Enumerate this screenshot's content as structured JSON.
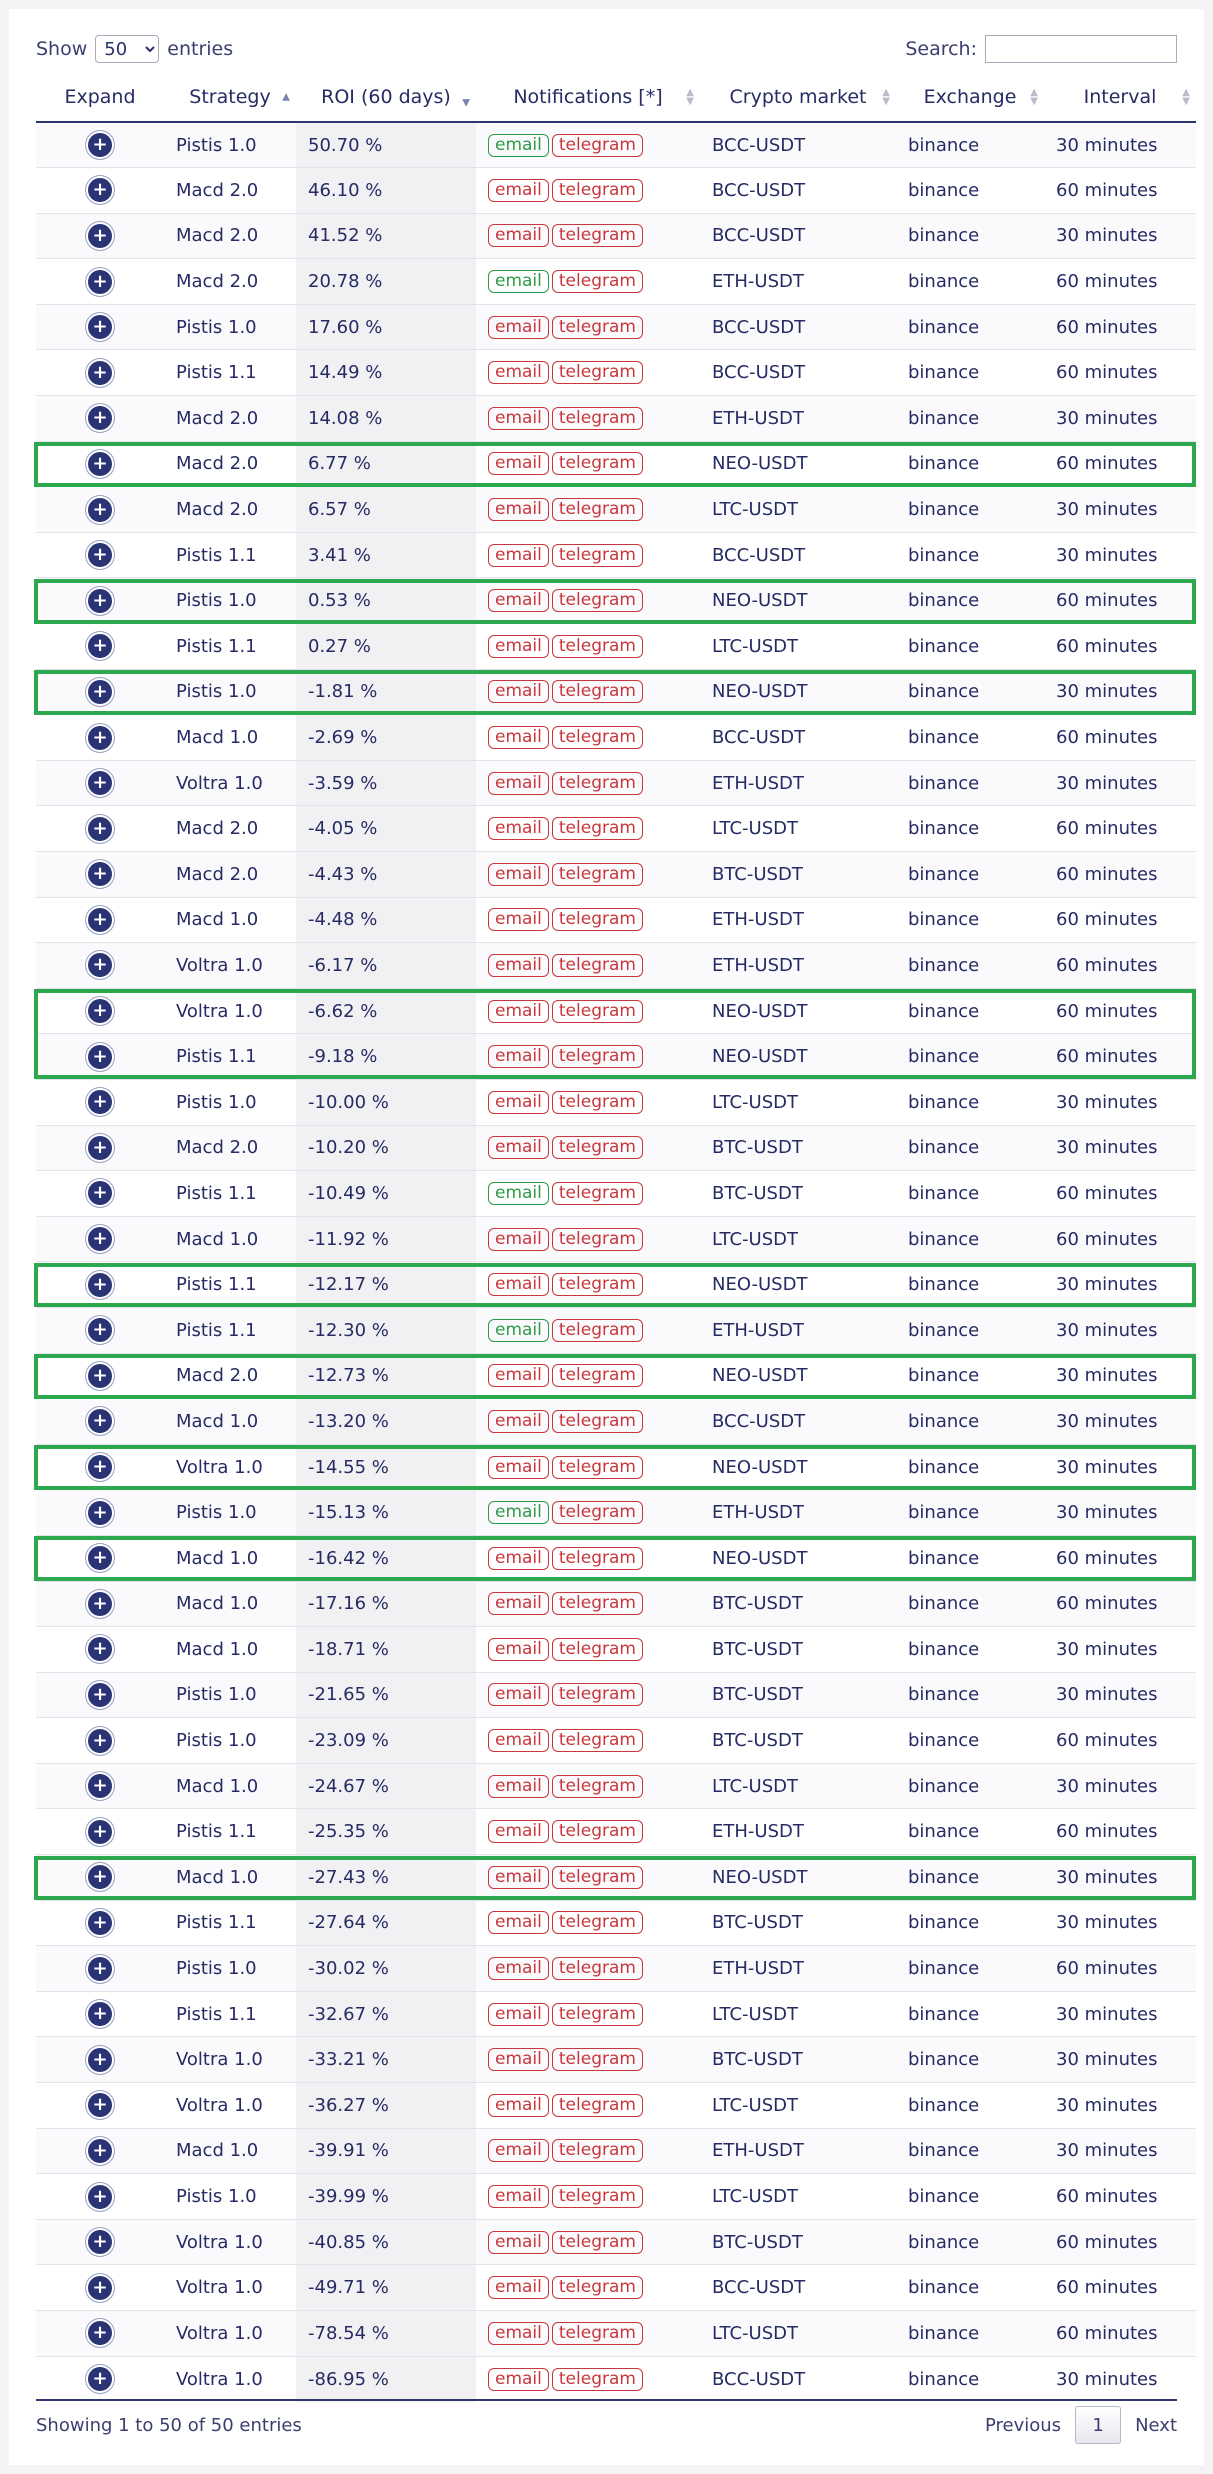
{
  "controls": {
    "show_label": "Show",
    "entries_label": "entries",
    "page_size": "50",
    "search_label": "Search:",
    "search_value": ""
  },
  "columns": [
    "Expand",
    "Strategy",
    "ROI (60 days)",
    "Notifications [*]",
    "Crypto market",
    "Exchange",
    "Interval"
  ],
  "sort": {
    "strategy": "ascending",
    "roi": "descending"
  },
  "rows": [
    {
      "strategy": "Pistis 1.0",
      "roi": "50.70 %",
      "email_on": true,
      "telegram_on": false,
      "market": "BCC-USDT",
      "exchange": "binance",
      "interval": "30 minutes",
      "highlight": false
    },
    {
      "strategy": "Macd 2.0",
      "roi": "46.10 %",
      "email_on": false,
      "telegram_on": false,
      "market": "BCC-USDT",
      "exchange": "binance",
      "interval": "60 minutes",
      "highlight": false
    },
    {
      "strategy": "Macd 2.0",
      "roi": "41.52 %",
      "email_on": false,
      "telegram_on": false,
      "market": "BCC-USDT",
      "exchange": "binance",
      "interval": "30 minutes",
      "highlight": false
    },
    {
      "strategy": "Macd 2.0",
      "roi": "20.78 %",
      "email_on": true,
      "telegram_on": false,
      "market": "ETH-USDT",
      "exchange": "binance",
      "interval": "60 minutes",
      "highlight": false
    },
    {
      "strategy": "Pistis 1.0",
      "roi": "17.60 %",
      "email_on": false,
      "telegram_on": false,
      "market": "BCC-USDT",
      "exchange": "binance",
      "interval": "60 minutes",
      "highlight": false
    },
    {
      "strategy": "Pistis 1.1",
      "roi": "14.49 %",
      "email_on": false,
      "telegram_on": false,
      "market": "BCC-USDT",
      "exchange": "binance",
      "interval": "60 minutes",
      "highlight": false
    },
    {
      "strategy": "Macd 2.0",
      "roi": "14.08 %",
      "email_on": false,
      "telegram_on": false,
      "market": "ETH-USDT",
      "exchange": "binance",
      "interval": "30 minutes",
      "highlight": false
    },
    {
      "strategy": "Macd 2.0",
      "roi": "6.77 %",
      "email_on": false,
      "telegram_on": false,
      "market": "NEO-USDT",
      "exchange": "binance",
      "interval": "60 minutes",
      "highlight": true
    },
    {
      "strategy": "Macd 2.0",
      "roi": "6.57 %",
      "email_on": false,
      "telegram_on": false,
      "market": "LTC-USDT",
      "exchange": "binance",
      "interval": "30 minutes",
      "highlight": false
    },
    {
      "strategy": "Pistis 1.1",
      "roi": "3.41 %",
      "email_on": false,
      "telegram_on": false,
      "market": "BCC-USDT",
      "exchange": "binance",
      "interval": "30 minutes",
      "highlight": false
    },
    {
      "strategy": "Pistis 1.0",
      "roi": "0.53 %",
      "email_on": false,
      "telegram_on": false,
      "market": "NEO-USDT",
      "exchange": "binance",
      "interval": "60 minutes",
      "highlight": true
    },
    {
      "strategy": "Pistis 1.1",
      "roi": "0.27 %",
      "email_on": false,
      "telegram_on": false,
      "market": "LTC-USDT",
      "exchange": "binance",
      "interval": "60 minutes",
      "highlight": false
    },
    {
      "strategy": "Pistis 1.0",
      "roi": "-1.81 %",
      "email_on": false,
      "telegram_on": false,
      "market": "NEO-USDT",
      "exchange": "binance",
      "interval": "30 minutes",
      "highlight": true
    },
    {
      "strategy": "Macd 1.0",
      "roi": "-2.69 %",
      "email_on": false,
      "telegram_on": false,
      "market": "BCC-USDT",
      "exchange": "binance",
      "interval": "60 minutes",
      "highlight": false
    },
    {
      "strategy": "Voltra 1.0",
      "roi": "-3.59 %",
      "email_on": false,
      "telegram_on": false,
      "market": "ETH-USDT",
      "exchange": "binance",
      "interval": "30 minutes",
      "highlight": false
    },
    {
      "strategy": "Macd 2.0",
      "roi": "-4.05 %",
      "email_on": false,
      "telegram_on": false,
      "market": "LTC-USDT",
      "exchange": "binance",
      "interval": "60 minutes",
      "highlight": false
    },
    {
      "strategy": "Macd 2.0",
      "roi": "-4.43 %",
      "email_on": false,
      "telegram_on": false,
      "market": "BTC-USDT",
      "exchange": "binance",
      "interval": "60 minutes",
      "highlight": false
    },
    {
      "strategy": "Macd 1.0",
      "roi": "-4.48 %",
      "email_on": false,
      "telegram_on": false,
      "market": "ETH-USDT",
      "exchange": "binance",
      "interval": "60 minutes",
      "highlight": false
    },
    {
      "strategy": "Voltra 1.0",
      "roi": "-6.17 %",
      "email_on": false,
      "telegram_on": false,
      "market": "ETH-USDT",
      "exchange": "binance",
      "interval": "60 minutes",
      "highlight": false
    },
    {
      "strategy": "Voltra 1.0",
      "roi": "-6.62 %",
      "email_on": false,
      "telegram_on": false,
      "market": "NEO-USDT",
      "exchange": "binance",
      "interval": "60 minutes",
      "highlight": true
    },
    {
      "strategy": "Pistis 1.1",
      "roi": "-9.18 %",
      "email_on": false,
      "telegram_on": false,
      "market": "NEO-USDT",
      "exchange": "binance",
      "interval": "60 minutes",
      "highlight": true
    },
    {
      "strategy": "Pistis 1.0",
      "roi": "-10.00 %",
      "email_on": false,
      "telegram_on": false,
      "market": "LTC-USDT",
      "exchange": "binance",
      "interval": "30 minutes",
      "highlight": false
    },
    {
      "strategy": "Macd 2.0",
      "roi": "-10.20 %",
      "email_on": false,
      "telegram_on": false,
      "market": "BTC-USDT",
      "exchange": "binance",
      "interval": "30 minutes",
      "highlight": false
    },
    {
      "strategy": "Pistis 1.1",
      "roi": "-10.49 %",
      "email_on": true,
      "telegram_on": false,
      "market": "BTC-USDT",
      "exchange": "binance",
      "interval": "60 minutes",
      "highlight": false
    },
    {
      "strategy": "Macd 1.0",
      "roi": "-11.92 %",
      "email_on": false,
      "telegram_on": false,
      "market": "LTC-USDT",
      "exchange": "binance",
      "interval": "60 minutes",
      "highlight": false
    },
    {
      "strategy": "Pistis 1.1",
      "roi": "-12.17 %",
      "email_on": false,
      "telegram_on": false,
      "market": "NEO-USDT",
      "exchange": "binance",
      "interval": "30 minutes",
      "highlight": true
    },
    {
      "strategy": "Pistis 1.1",
      "roi": "-12.30 %",
      "email_on": true,
      "telegram_on": false,
      "market": "ETH-USDT",
      "exchange": "binance",
      "interval": "30 minutes",
      "highlight": false
    },
    {
      "strategy": "Macd 2.0",
      "roi": "-12.73 %",
      "email_on": false,
      "telegram_on": false,
      "market": "NEO-USDT",
      "exchange": "binance",
      "interval": "30 minutes",
      "highlight": true
    },
    {
      "strategy": "Macd 1.0",
      "roi": "-13.20 %",
      "email_on": false,
      "telegram_on": false,
      "market": "BCC-USDT",
      "exchange": "binance",
      "interval": "30 minutes",
      "highlight": false
    },
    {
      "strategy": "Voltra 1.0",
      "roi": "-14.55 %",
      "email_on": false,
      "telegram_on": false,
      "market": "NEO-USDT",
      "exchange": "binance",
      "interval": "30 minutes",
      "highlight": true
    },
    {
      "strategy": "Pistis 1.0",
      "roi": "-15.13 %",
      "email_on": true,
      "telegram_on": false,
      "market": "ETH-USDT",
      "exchange": "binance",
      "interval": "30 minutes",
      "highlight": false
    },
    {
      "strategy": "Macd 1.0",
      "roi": "-16.42 %",
      "email_on": false,
      "telegram_on": false,
      "market": "NEO-USDT",
      "exchange": "binance",
      "interval": "60 minutes",
      "highlight": true
    },
    {
      "strategy": "Macd 1.0",
      "roi": "-17.16 %",
      "email_on": false,
      "telegram_on": false,
      "market": "BTC-USDT",
      "exchange": "binance",
      "interval": "60 minutes",
      "highlight": false
    },
    {
      "strategy": "Macd 1.0",
      "roi": "-18.71 %",
      "email_on": false,
      "telegram_on": false,
      "market": "BTC-USDT",
      "exchange": "binance",
      "interval": "30 minutes",
      "highlight": false
    },
    {
      "strategy": "Pistis 1.0",
      "roi": "-21.65 %",
      "email_on": false,
      "telegram_on": false,
      "market": "BTC-USDT",
      "exchange": "binance",
      "interval": "30 minutes",
      "highlight": false
    },
    {
      "strategy": "Pistis 1.0",
      "roi": "-23.09 %",
      "email_on": false,
      "telegram_on": false,
      "market": "BTC-USDT",
      "exchange": "binance",
      "interval": "60 minutes",
      "highlight": false
    },
    {
      "strategy": "Macd 1.0",
      "roi": "-24.67 %",
      "email_on": false,
      "telegram_on": false,
      "market": "LTC-USDT",
      "exchange": "binance",
      "interval": "30 minutes",
      "highlight": false
    },
    {
      "strategy": "Pistis 1.1",
      "roi": "-25.35 %",
      "email_on": false,
      "telegram_on": false,
      "market": "ETH-USDT",
      "exchange": "binance",
      "interval": "60 minutes",
      "highlight": false
    },
    {
      "strategy": "Macd 1.0",
      "roi": "-27.43 %",
      "email_on": false,
      "telegram_on": false,
      "market": "NEO-USDT",
      "exchange": "binance",
      "interval": "30 minutes",
      "highlight": true
    },
    {
      "strategy": "Pistis 1.1",
      "roi": "-27.64 %",
      "email_on": false,
      "telegram_on": false,
      "market": "BTC-USDT",
      "exchange": "binance",
      "interval": "30 minutes",
      "highlight": false
    },
    {
      "strategy": "Pistis 1.0",
      "roi": "-30.02 %",
      "email_on": false,
      "telegram_on": false,
      "market": "ETH-USDT",
      "exchange": "binance",
      "interval": "60 minutes",
      "highlight": false
    },
    {
      "strategy": "Pistis 1.1",
      "roi": "-32.67 %",
      "email_on": false,
      "telegram_on": false,
      "market": "LTC-USDT",
      "exchange": "binance",
      "interval": "30 minutes",
      "highlight": false
    },
    {
      "strategy": "Voltra 1.0",
      "roi": "-33.21 %",
      "email_on": false,
      "telegram_on": false,
      "market": "BTC-USDT",
      "exchange": "binance",
      "interval": "30 minutes",
      "highlight": false
    },
    {
      "strategy": "Voltra 1.0",
      "roi": "-36.27 %",
      "email_on": false,
      "telegram_on": false,
      "market": "LTC-USDT",
      "exchange": "binance",
      "interval": "30 minutes",
      "highlight": false
    },
    {
      "strategy": "Macd 1.0",
      "roi": "-39.91 %",
      "email_on": false,
      "telegram_on": false,
      "market": "ETH-USDT",
      "exchange": "binance",
      "interval": "30 minutes",
      "highlight": false
    },
    {
      "strategy": "Pistis 1.0",
      "roi": "-39.99 %",
      "email_on": false,
      "telegram_on": false,
      "market": "LTC-USDT",
      "exchange": "binance",
      "interval": "60 minutes",
      "highlight": false
    },
    {
      "strategy": "Voltra 1.0",
      "roi": "-40.85 %",
      "email_on": false,
      "telegram_on": false,
      "market": "BTC-USDT",
      "exchange": "binance",
      "interval": "60 minutes",
      "highlight": false
    },
    {
      "strategy": "Voltra 1.0",
      "roi": "-49.71 %",
      "email_on": false,
      "telegram_on": false,
      "market": "BCC-USDT",
      "exchange": "binance",
      "interval": "60 minutes",
      "highlight": false
    },
    {
      "strategy": "Voltra 1.0",
      "roi": "-78.54 %",
      "email_on": false,
      "telegram_on": false,
      "market": "LTC-USDT",
      "exchange": "binance",
      "interval": "60 minutes",
      "highlight": false
    },
    {
      "strategy": "Voltra 1.0",
      "roi": "-86.95 %",
      "email_on": false,
      "telegram_on": false,
      "market": "BCC-USDT",
      "exchange": "binance",
      "interval": "30 minutes",
      "highlight": false
    }
  ],
  "tag_labels": {
    "email": "email",
    "telegram": "telegram"
  },
  "footer": {
    "info": "Showing 1 to 50 of 50 entries",
    "previous": "Previous",
    "page": "1",
    "next": "Next"
  },
  "colors": {
    "header_text": "#262b63",
    "tag_off": "#c9363b",
    "tag_on": "#2f9a48",
    "highlight_box": "#2ea84f"
  }
}
